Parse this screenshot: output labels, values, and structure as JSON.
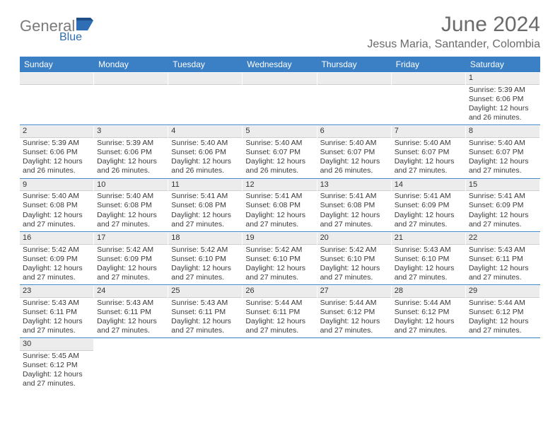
{
  "logo": {
    "main": "General",
    "sub": "Blue"
  },
  "title": "June 2024",
  "location": "Jesus Maria, Santander, Colombia",
  "colors": {
    "header_bg": "#3b7fc4",
    "header_text": "#ffffff",
    "daynum_bg": "#ececec",
    "border": "#3b7fc4",
    "text": "#3a3a3a",
    "title_text": "#6a6a6a",
    "logo_gray": "#7a7a7a",
    "logo_blue": "#2f6db5"
  },
  "weekdays": [
    "Sunday",
    "Monday",
    "Tuesday",
    "Wednesday",
    "Thursday",
    "Friday",
    "Saturday"
  ],
  "weeks": [
    [
      null,
      null,
      null,
      null,
      null,
      null,
      {
        "n": "1",
        "sr": "5:39 AM",
        "ss": "6:06 PM",
        "dl": "12 hours and 26 minutes."
      }
    ],
    [
      {
        "n": "2",
        "sr": "5:39 AM",
        "ss": "6:06 PM",
        "dl": "12 hours and 26 minutes."
      },
      {
        "n": "3",
        "sr": "5:39 AM",
        "ss": "6:06 PM",
        "dl": "12 hours and 26 minutes."
      },
      {
        "n": "4",
        "sr": "5:40 AM",
        "ss": "6:06 PM",
        "dl": "12 hours and 26 minutes."
      },
      {
        "n": "5",
        "sr": "5:40 AM",
        "ss": "6:07 PM",
        "dl": "12 hours and 26 minutes."
      },
      {
        "n": "6",
        "sr": "5:40 AM",
        "ss": "6:07 PM",
        "dl": "12 hours and 26 minutes."
      },
      {
        "n": "7",
        "sr": "5:40 AM",
        "ss": "6:07 PM",
        "dl": "12 hours and 27 minutes."
      },
      {
        "n": "8",
        "sr": "5:40 AM",
        "ss": "6:07 PM",
        "dl": "12 hours and 27 minutes."
      }
    ],
    [
      {
        "n": "9",
        "sr": "5:40 AM",
        "ss": "6:08 PM",
        "dl": "12 hours and 27 minutes."
      },
      {
        "n": "10",
        "sr": "5:40 AM",
        "ss": "6:08 PM",
        "dl": "12 hours and 27 minutes."
      },
      {
        "n": "11",
        "sr": "5:41 AM",
        "ss": "6:08 PM",
        "dl": "12 hours and 27 minutes."
      },
      {
        "n": "12",
        "sr": "5:41 AM",
        "ss": "6:08 PM",
        "dl": "12 hours and 27 minutes."
      },
      {
        "n": "13",
        "sr": "5:41 AM",
        "ss": "6:08 PM",
        "dl": "12 hours and 27 minutes."
      },
      {
        "n": "14",
        "sr": "5:41 AM",
        "ss": "6:09 PM",
        "dl": "12 hours and 27 minutes."
      },
      {
        "n": "15",
        "sr": "5:41 AM",
        "ss": "6:09 PM",
        "dl": "12 hours and 27 minutes."
      }
    ],
    [
      {
        "n": "16",
        "sr": "5:42 AM",
        "ss": "6:09 PM",
        "dl": "12 hours and 27 minutes."
      },
      {
        "n": "17",
        "sr": "5:42 AM",
        "ss": "6:09 PM",
        "dl": "12 hours and 27 minutes."
      },
      {
        "n": "18",
        "sr": "5:42 AM",
        "ss": "6:10 PM",
        "dl": "12 hours and 27 minutes."
      },
      {
        "n": "19",
        "sr": "5:42 AM",
        "ss": "6:10 PM",
        "dl": "12 hours and 27 minutes."
      },
      {
        "n": "20",
        "sr": "5:42 AM",
        "ss": "6:10 PM",
        "dl": "12 hours and 27 minutes."
      },
      {
        "n": "21",
        "sr": "5:43 AM",
        "ss": "6:10 PM",
        "dl": "12 hours and 27 minutes."
      },
      {
        "n": "22",
        "sr": "5:43 AM",
        "ss": "6:11 PM",
        "dl": "12 hours and 27 minutes."
      }
    ],
    [
      {
        "n": "23",
        "sr": "5:43 AM",
        "ss": "6:11 PM",
        "dl": "12 hours and 27 minutes."
      },
      {
        "n": "24",
        "sr": "5:43 AM",
        "ss": "6:11 PM",
        "dl": "12 hours and 27 minutes."
      },
      {
        "n": "25",
        "sr": "5:43 AM",
        "ss": "6:11 PM",
        "dl": "12 hours and 27 minutes."
      },
      {
        "n": "26",
        "sr": "5:44 AM",
        "ss": "6:11 PM",
        "dl": "12 hours and 27 minutes."
      },
      {
        "n": "27",
        "sr": "5:44 AM",
        "ss": "6:12 PM",
        "dl": "12 hours and 27 minutes."
      },
      {
        "n": "28",
        "sr": "5:44 AM",
        "ss": "6:12 PM",
        "dl": "12 hours and 27 minutes."
      },
      {
        "n": "29",
        "sr": "5:44 AM",
        "ss": "6:12 PM",
        "dl": "12 hours and 27 minutes."
      }
    ],
    [
      {
        "n": "30",
        "sr": "5:45 AM",
        "ss": "6:12 PM",
        "dl": "12 hours and 27 minutes."
      },
      null,
      null,
      null,
      null,
      null,
      null
    ]
  ],
  "labels": {
    "sunrise": "Sunrise:",
    "sunset": "Sunset:",
    "daylight": "Daylight:"
  }
}
